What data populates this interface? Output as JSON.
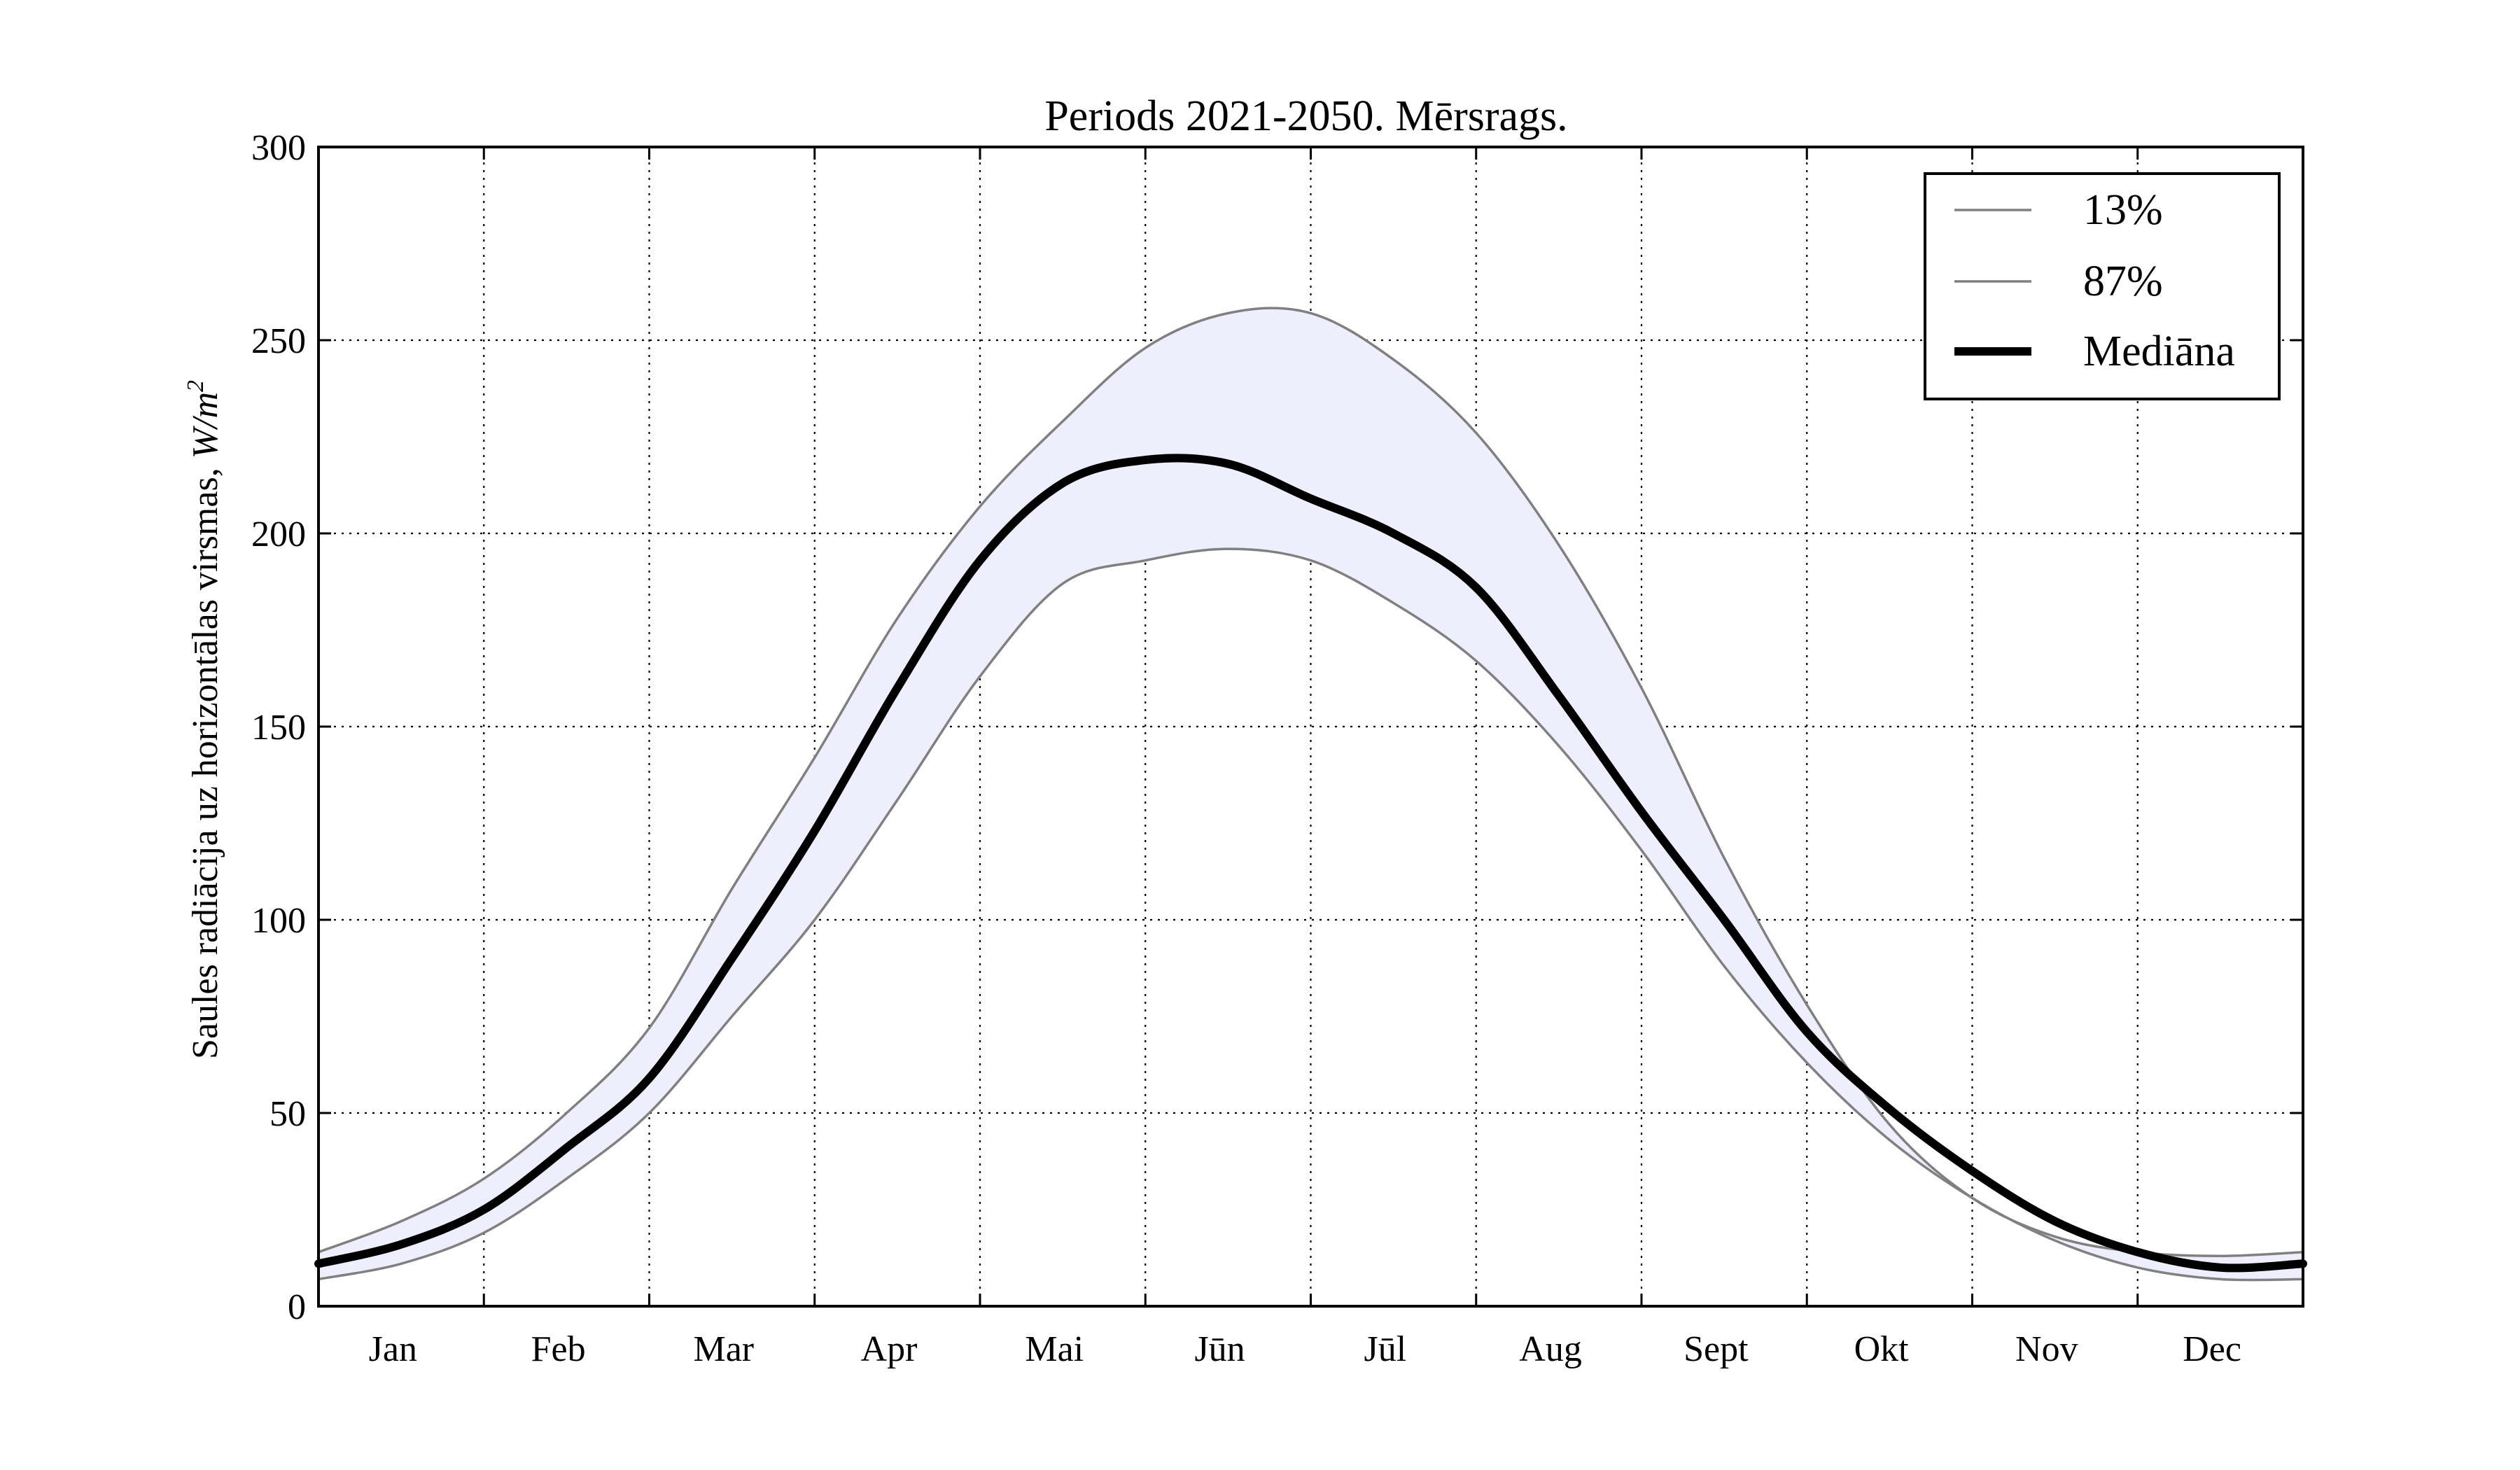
{
  "chart_data": {
    "type": "line",
    "title": "Periods 2021-2050. Mērsrags.",
    "ylabel": "Saules radiācija uz horizontālas virsmas, ",
    "ylabel_unit": "W/m",
    "ylabel_unit_exp": "2",
    "ylim": [
      0,
      300
    ],
    "yticks": [
      0,
      50,
      100,
      150,
      200,
      250,
      300
    ],
    "months": [
      "Jan",
      "Feb",
      "Mar",
      "Apr",
      "Mai",
      "Jūn",
      "Jūl",
      "Aug",
      "Sept",
      "Okt",
      "Nov",
      "Dec"
    ],
    "grid": true,
    "legend_position": "top-right",
    "band_fill": "#eeeefc",
    "x": [
      0,
      0.5,
      1,
      1.5,
      2,
      2.5,
      3,
      3.5,
      4,
      4.5,
      5,
      5.5,
      6,
      6.5,
      7,
      7.5,
      8,
      8.5,
      9,
      9.5,
      10,
      10.5,
      11,
      11.5,
      12
    ],
    "series": [
      {
        "name": "13%",
        "color": "#808080",
        "values": [
          14,
          22,
          33,
          50,
          72,
          108,
          142,
          178,
          207,
          229,
          248,
          257,
          257,
          245,
          226,
          197,
          160,
          116,
          78,
          47,
          28,
          18,
          14,
          13,
          14
        ]
      },
      {
        "name": "87%",
        "color": "#808080",
        "values": [
          7,
          11,
          19,
          33,
          50,
          75,
          100,
          131,
          163,
          187,
          193,
          196,
          193,
          182,
          167,
          145,
          118,
          88,
          63,
          43,
          28,
          17,
          10,
          7,
          7
        ]
      },
      {
        "name": "Mediāna",
        "color": "#000000",
        "values": [
          11,
          16,
          25,
          41,
          59,
          90,
          123,
          160,
          193,
          213,
          219,
          218,
          209,
          200,
          186,
          158,
          128,
          100,
          71,
          51,
          35,
          22,
          14,
          10,
          11
        ]
      }
    ]
  }
}
